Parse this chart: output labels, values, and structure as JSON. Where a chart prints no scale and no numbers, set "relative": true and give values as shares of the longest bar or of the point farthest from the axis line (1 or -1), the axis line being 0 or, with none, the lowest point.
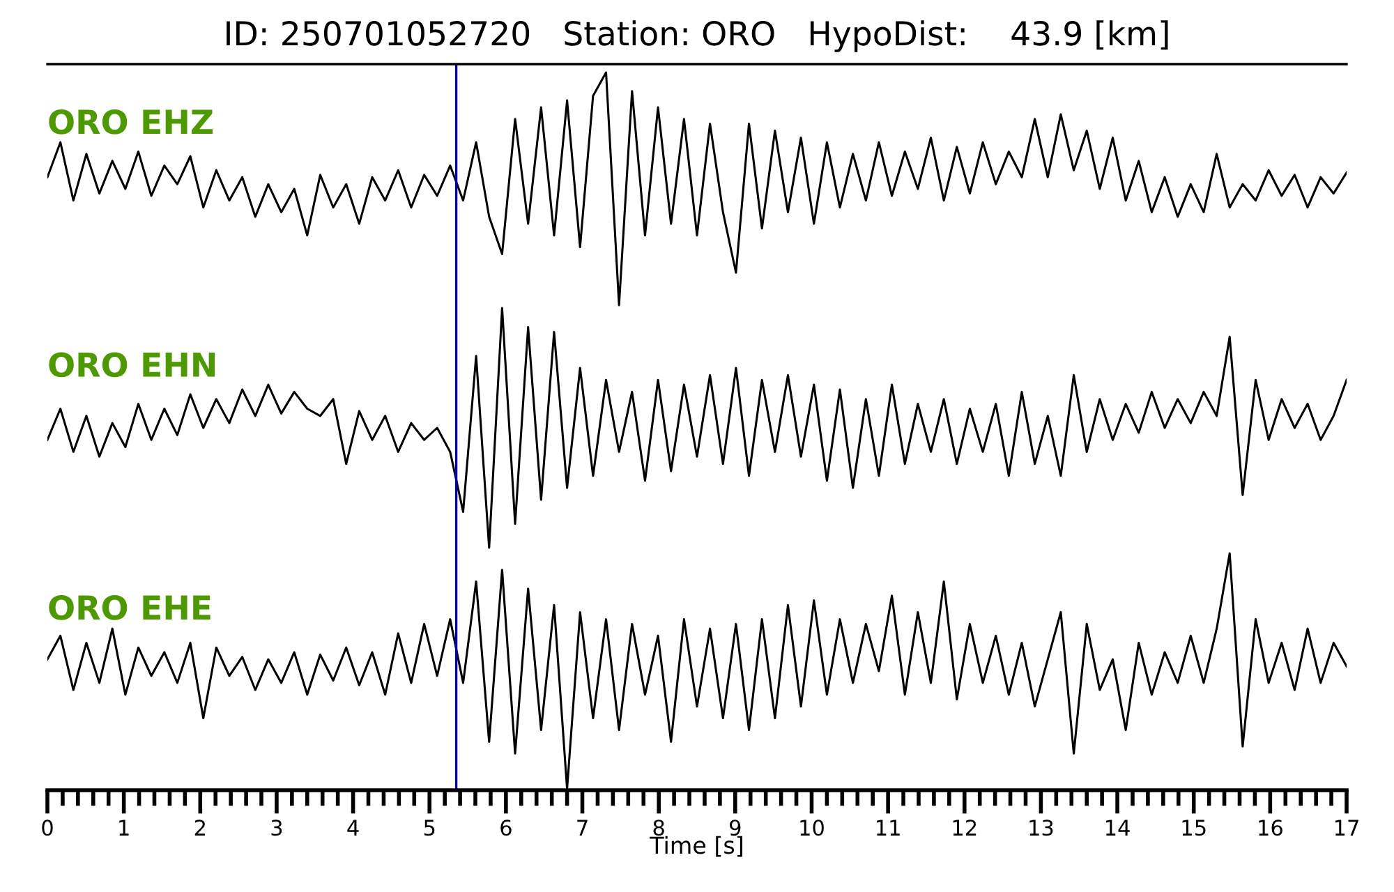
{
  "chart_data": [
    {
      "type": "line",
      "title": "ID: 250701052720   Station: ORO   HypoDist:    43.9 [km]",
      "relative": true,
      "xlim": [
        0,
        17
      ],
      "tick_labels": false,
      "grid": false,
      "legend": false,
      "marker": "none",
      "line_style": "solid",
      "x": [
        0,
        0.17,
        0.34,
        0.51,
        0.68,
        0.85,
        1.02,
        1.19,
        1.36,
        1.53,
        1.7,
        1.87,
        2.04,
        2.21,
        2.38,
        2.55,
        2.72,
        2.89,
        3.06,
        3.23,
        3.4,
        3.57,
        3.74,
        3.91,
        4.08,
        4.25,
        4.42,
        4.59,
        4.76,
        4.93,
        5.1,
        5.27,
        5.44,
        5.61,
        5.78,
        5.95,
        6.12,
        6.29,
        6.46,
        6.63,
        6.8,
        6.97,
        7.14,
        7.31,
        7.48,
        7.65,
        7.82,
        7.99,
        8.16,
        8.33,
        8.5,
        8.67,
        8.84,
        9.01,
        9.18,
        9.35,
        9.52,
        9.69,
        9.86,
        10.03,
        10.2,
        10.37,
        10.54,
        10.71,
        10.88,
        11.05,
        11.22,
        11.39,
        11.56,
        11.73,
        11.9,
        12.07,
        12.24,
        12.41,
        12.58,
        12.75,
        12.92,
        13.09,
        13.26,
        13.43,
        13.6,
        13.77,
        13.94,
        14.11,
        14.28,
        14.45,
        14.62,
        14.79,
        14.96,
        15.13,
        15.3,
        15.47,
        15.64,
        15.81,
        15.98,
        16.15,
        16.32,
        16.49,
        16.66,
        16.83,
        17.0
      ],
      "series": [
        {
          "name": "ORO EHZ",
          "color": "#000000",
          "values": [
            0.55,
            0.7,
            0.45,
            0.65,
            0.48,
            0.62,
            0.5,
            0.66,
            0.47,
            0.6,
            0.52,
            0.64,
            0.42,
            0.58,
            0.45,
            0.55,
            0.38,
            0.52,
            0.4,
            0.5,
            0.3,
            0.56,
            0.42,
            0.52,
            0.35,
            0.55,
            0.45,
            0.58,
            0.42,
            0.56,
            0.47,
            0.6,
            0.45,
            0.7,
            0.38,
            0.22,
            0.8,
            0.35,
            0.85,
            0.3,
            0.88,
            0.25,
            0.9,
            1.0,
            0.0,
            0.92,
            0.3,
            0.85,
            0.35,
            0.8,
            0.3,
            0.78,
            0.4,
            0.14,
            0.78,
            0.33,
            0.75,
            0.4,
            0.72,
            0.35,
            0.7,
            0.42,
            0.65,
            0.45,
            0.7,
            0.47,
            0.66,
            0.5,
            0.72,
            0.45,
            0.68,
            0.48,
            0.7,
            0.52,
            0.66,
            0.55,
            0.8,
            0.55,
            0.82,
            0.58,
            0.75,
            0.5,
            0.72,
            0.45,
            0.62,
            0.4,
            0.55,
            0.38,
            0.52,
            0.4,
            0.65,
            0.42,
            0.52,
            0.45,
            0.58,
            0.47,
            0.56,
            0.42,
            0.55,
            0.48,
            0.57
          ]
        }
      ],
      "ref_lines": [
        {
          "axis": "x",
          "value": 5.35,
          "color": "#0000cc"
        }
      ]
    },
    {
      "type": "line",
      "relative": true,
      "xlim": [
        0,
        17
      ],
      "tick_labels": false,
      "grid": false,
      "legend": false,
      "marker": "none",
      "line_style": "solid",
      "x": [
        0,
        0.17,
        0.34,
        0.51,
        0.68,
        0.85,
        1.02,
        1.19,
        1.36,
        1.53,
        1.7,
        1.87,
        2.04,
        2.21,
        2.38,
        2.55,
        2.72,
        2.89,
        3.06,
        3.23,
        3.4,
        3.57,
        3.74,
        3.91,
        4.08,
        4.25,
        4.42,
        4.59,
        4.76,
        4.93,
        5.1,
        5.27,
        5.44,
        5.61,
        5.78,
        5.95,
        6.12,
        6.29,
        6.46,
        6.63,
        6.8,
        6.97,
        7.14,
        7.31,
        7.48,
        7.65,
        7.82,
        7.99,
        8.16,
        8.33,
        8.5,
        8.67,
        8.84,
        9.01,
        9.18,
        9.35,
        9.52,
        9.69,
        9.86,
        10.03,
        10.2,
        10.37,
        10.54,
        10.71,
        10.88,
        11.05,
        11.22,
        11.39,
        11.56,
        11.73,
        11.9,
        12.07,
        12.24,
        12.41,
        12.58,
        12.75,
        12.92,
        13.09,
        13.26,
        13.43,
        13.6,
        13.77,
        13.94,
        14.11,
        14.28,
        14.45,
        14.62,
        14.79,
        14.96,
        15.13,
        15.3,
        15.47,
        15.64,
        15.81,
        15.98,
        16.15,
        16.32,
        16.49,
        16.66,
        16.83,
        17.0
      ],
      "series": [
        {
          "name": "ORO EHN",
          "color": "#000000",
          "values": [
            0.45,
            0.58,
            0.4,
            0.55,
            0.38,
            0.52,
            0.42,
            0.6,
            0.45,
            0.58,
            0.47,
            0.64,
            0.5,
            0.62,
            0.52,
            0.66,
            0.55,
            0.68,
            0.56,
            0.65,
            0.58,
            0.55,
            0.62,
            0.35,
            0.57,
            0.45,
            0.55,
            0.4,
            0.52,
            0.45,
            0.5,
            0.4,
            0.15,
            0.8,
            0.0,
            1.0,
            0.1,
            0.92,
            0.2,
            0.9,
            0.25,
            0.75,
            0.3,
            0.7,
            0.4,
            0.65,
            0.28,
            0.7,
            0.32,
            0.68,
            0.38,
            0.72,
            0.35,
            0.75,
            0.3,
            0.7,
            0.4,
            0.72,
            0.38,
            0.68,
            0.28,
            0.66,
            0.25,
            0.62,
            0.3,
            0.68,
            0.35,
            0.6,
            0.4,
            0.62,
            0.35,
            0.58,
            0.4,
            0.6,
            0.3,
            0.65,
            0.35,
            0.55,
            0.3,
            0.72,
            0.4,
            0.62,
            0.45,
            0.6,
            0.48,
            0.65,
            0.5,
            0.62,
            0.52,
            0.65,
            0.55,
            0.88,
            0.22,
            0.7,
            0.45,
            0.62,
            0.5,
            0.6,
            0.45,
            0.55,
            0.7
          ]
        }
      ],
      "ref_lines": [
        {
          "axis": "x",
          "value": 5.35,
          "color": "#0000cc"
        }
      ]
    },
    {
      "type": "line",
      "relative": true,
      "xlabel": "Time [s]",
      "xlim": [
        0,
        17
      ],
      "tick_labels": "x",
      "grid": false,
      "legend": false,
      "marker": "none",
      "line_style": "solid",
      "xticks": [
        0,
        {
          "value": 0.2,
          "label": null
        },
        {
          "value": 0.4,
          "label": null
        },
        {
          "value": 0.6,
          "label": null
        },
        {
          "value": 0.8,
          "label": null
        },
        1,
        {
          "value": 1.2,
          "label": null
        },
        {
          "value": 1.4,
          "label": null
        },
        {
          "value": 1.6,
          "label": null
        },
        {
          "value": 1.8,
          "label": null
        },
        2,
        {
          "value": 2.2,
          "label": null
        },
        {
          "value": 2.4,
          "label": null
        },
        {
          "value": 2.6,
          "label": null
        },
        {
          "value": 2.8,
          "label": null
        },
        3,
        {
          "value": 3.2,
          "label": null
        },
        {
          "value": 3.4,
          "label": null
        },
        {
          "value": 3.6,
          "label": null
        },
        {
          "value": 3.8,
          "label": null
        },
        4,
        {
          "value": 4.2,
          "label": null
        },
        {
          "value": 4.4,
          "label": null
        },
        {
          "value": 4.6,
          "label": null
        },
        {
          "value": 4.8,
          "label": null
        },
        5,
        {
          "value": 5.2,
          "label": null
        },
        {
          "value": 5.4,
          "label": null
        },
        {
          "value": 5.6,
          "label": null
        },
        {
          "value": 5.8,
          "label": null
        },
        6,
        {
          "value": 6.2,
          "label": null
        },
        {
          "value": 6.4,
          "label": null
        },
        {
          "value": 6.6,
          "label": null
        },
        {
          "value": 6.8,
          "label": null
        },
        7,
        {
          "value": 7.2,
          "label": null
        },
        {
          "value": 7.4,
          "label": null
        },
        {
          "value": 7.6,
          "label": null
        },
        {
          "value": 7.8,
          "label": null
        },
        8,
        {
          "value": 8.2,
          "label": null
        },
        {
          "value": 8.4,
          "label": null
        },
        {
          "value": 8.6,
          "label": null
        },
        {
          "value": 8.8,
          "label": null
        },
        9,
        {
          "value": 9.2,
          "label": null
        },
        {
          "value": 9.4,
          "label": null
        },
        {
          "value": 9.6,
          "label": null
        },
        {
          "value": 9.8,
          "label": null
        },
        10,
        {
          "value": 10.2,
          "label": null
        },
        {
          "value": 10.4,
          "label": null
        },
        {
          "value": 10.6,
          "label": null
        },
        {
          "value": 10.8,
          "label": null
        },
        11,
        {
          "value": 11.2,
          "label": null
        },
        {
          "value": 11.4,
          "label": null
        },
        {
          "value": 11.6,
          "label": null
        },
        {
          "value": 11.8,
          "label": null
        },
        12,
        {
          "value": 12.2,
          "label": null
        },
        {
          "value": 12.4,
          "label": null
        },
        {
          "value": 12.6,
          "label": null
        },
        {
          "value": 12.8,
          "label": null
        },
        13,
        {
          "value": 13.2,
          "label": null
        },
        {
          "value": 13.4,
          "label": null
        },
        {
          "value": 13.6,
          "label": null
        },
        {
          "value": 13.8,
          "label": null
        },
        14,
        {
          "value": 14.2,
          "label": null
        },
        {
          "value": 14.4,
          "label": null
        },
        {
          "value": 14.6,
          "label": null
        },
        {
          "value": 14.8,
          "label": null
        },
        15,
        {
          "value": 15.2,
          "label": null
        },
        {
          "value": 15.4,
          "label": null
        },
        {
          "value": 15.6,
          "label": null
        },
        {
          "value": 15.8,
          "label": null
        },
        16,
        {
          "value": 16.2,
          "label": null
        },
        {
          "value": 16.4,
          "label": null
        },
        {
          "value": 16.6,
          "label": null
        },
        {
          "value": 16.8,
          "label": null
        },
        17
      ],
      "x": [
        0,
        0.17,
        0.34,
        0.51,
        0.68,
        0.85,
        1.02,
        1.19,
        1.36,
        1.53,
        1.7,
        1.87,
        2.04,
        2.21,
        2.38,
        2.55,
        2.72,
        2.89,
        3.06,
        3.23,
        3.4,
        3.57,
        3.74,
        3.91,
        4.08,
        4.25,
        4.42,
        4.59,
        4.76,
        4.93,
        5.1,
        5.27,
        5.44,
        5.61,
        5.78,
        5.95,
        6.12,
        6.29,
        6.46,
        6.63,
        6.8,
        6.97,
        7.14,
        7.31,
        7.48,
        7.65,
        7.82,
        7.99,
        8.16,
        8.33,
        8.5,
        8.67,
        8.84,
        9.01,
        9.18,
        9.35,
        9.52,
        9.69,
        9.86,
        10.03,
        10.2,
        10.37,
        10.54,
        10.71,
        10.88,
        11.05,
        11.22,
        11.39,
        11.56,
        11.73,
        11.9,
        12.07,
        12.24,
        12.41,
        12.58,
        12.75,
        12.92,
        13.09,
        13.26,
        13.43,
        13.6,
        13.77,
        13.94,
        14.11,
        14.28,
        14.45,
        14.62,
        14.79,
        14.96,
        15.13,
        15.3,
        15.47,
        15.64,
        15.81,
        15.98,
        16.15,
        16.32,
        16.49,
        16.66,
        16.83,
        17.0
      ],
      "series": [
        {
          "name": "ORO EHE",
          "color": "#000000",
          "values": [
            0.55,
            0.65,
            0.42,
            0.62,
            0.45,
            0.68,
            0.4,
            0.6,
            0.48,
            0.58,
            0.45,
            0.62,
            0.3,
            0.6,
            0.48,
            0.56,
            0.42,
            0.55,
            0.45,
            0.58,
            0.4,
            0.57,
            0.46,
            0.6,
            0.44,
            0.58,
            0.4,
            0.66,
            0.45,
            0.7,
            0.48,
            0.72,
            0.45,
            0.88,
            0.2,
            0.93,
            0.15,
            0.85,
            0.25,
            0.78,
            0.0,
            0.75,
            0.3,
            0.72,
            0.25,
            0.7,
            0.4,
            0.65,
            0.2,
            0.72,
            0.35,
            0.68,
            0.3,
            0.7,
            0.25,
            0.72,
            0.3,
            0.78,
            0.35,
            0.8,
            0.4,
            0.72,
            0.45,
            0.7,
            0.5,
            0.82,
            0.4,
            0.75,
            0.45,
            0.88,
            0.38,
            0.7,
            0.45,
            0.65,
            0.4,
            0.62,
            0.35,
            0.55,
            0.75,
            0.15,
            0.7,
            0.42,
            0.55,
            0.25,
            0.62,
            0.4,
            0.58,
            0.45,
            0.65,
            0.45,
            0.68,
            1.0,
            0.18,
            0.72,
            0.45,
            0.62,
            0.42,
            0.68,
            0.45,
            0.62,
            0.52
          ]
        }
      ],
      "ref_lines": [
        {
          "axis": "x",
          "value": 5.35,
          "color": "#0000cc"
        }
      ]
    }
  ]
}
